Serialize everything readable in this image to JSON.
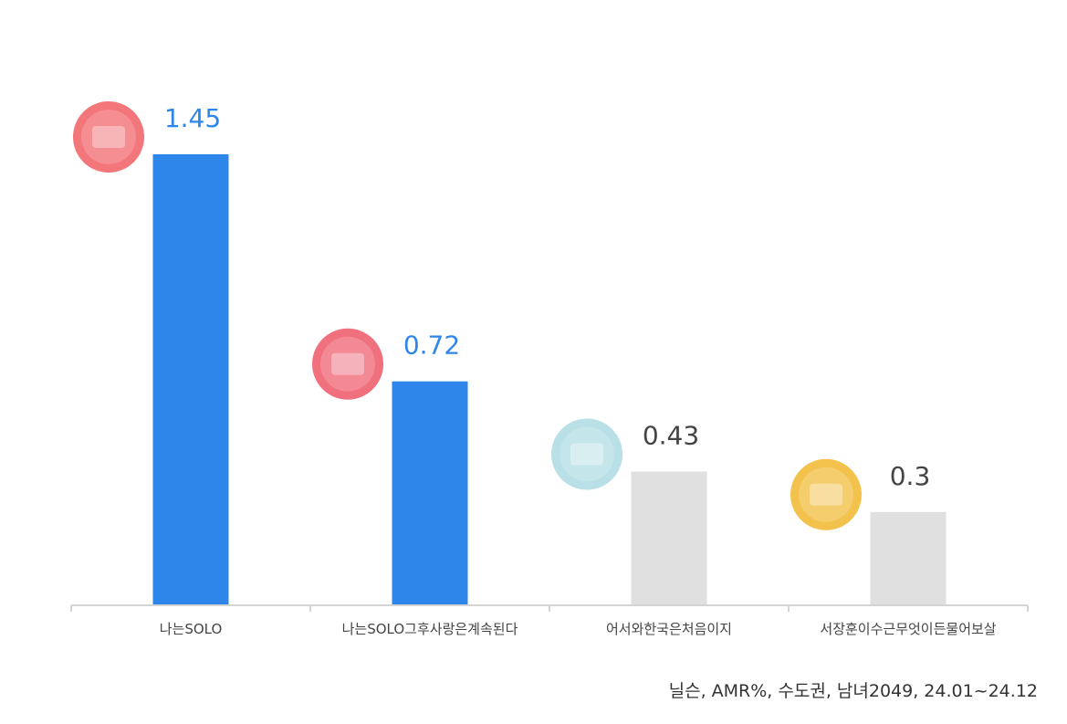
{
  "chart_data": {
    "type": "bar",
    "categories": [
      "나는SOLO",
      "나는SOLO그후사랑은계속된다",
      "어서와한국은처음이지",
      "서장훈이수근무엇이든물어보살"
    ],
    "values": [
      1.45,
      0.72,
      0.43,
      0.3
    ],
    "value_labels": [
      "1.45",
      "0.72",
      "0.43",
      "0.3"
    ],
    "bar_colors": [
      "#2f86ea",
      "#2f86ea",
      "#e0e0e0",
      "#e0e0e0"
    ],
    "label_colors": [
      "#2f86ea",
      "#2f86ea",
      "#444444",
      "#444444"
    ],
    "logo_icons": [
      "solo-logo-icon",
      "solo-love-logo-icon",
      "korea-first-logo-icon",
      "ask-anything-logo-icon"
    ],
    "logo_colors": [
      "#f3767a",
      "#f0707e",
      "#b8e0e6",
      "#f2c24d"
    ],
    "ylim": [
      0,
      1.6
    ],
    "grid": false,
    "title": "",
    "xlabel": "",
    "ylabel": ""
  },
  "footer": {
    "source": "닐슨, AMR%, 수도권, 남녀2049, 24.01~24.12"
  }
}
